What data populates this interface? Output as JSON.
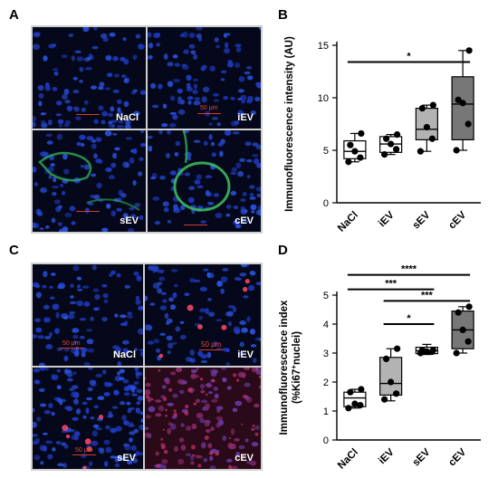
{
  "panels": {
    "a": "A",
    "b": "B",
    "c": "C",
    "d": "D"
  },
  "micrographs_a": [
    {
      "label": "NaCl",
      "scale": "",
      "tone": "blue"
    },
    {
      "label": "iEV",
      "scale": "50 μm",
      "tone": "blue"
    },
    {
      "label": "sEV",
      "scale": "",
      "tone": "vessel"
    },
    {
      "label": "cEV",
      "scale": "",
      "tone": "vessel-large"
    }
  ],
  "micrographs_c": [
    {
      "label": "NaCl",
      "scale": "50 μm",
      "tone": "blue"
    },
    {
      "label": "iEV",
      "scale": "50 μm",
      "tone": "blue-red"
    },
    {
      "label": "sEV",
      "scale": "50 μm",
      "tone": "blue-dense"
    },
    {
      "label": "cEV",
      "scale": "",
      "tone": "red"
    }
  ],
  "colors": {
    "box_fills": [
      "#ffffff",
      "#ffffff",
      "#b3b3b3",
      "#777777"
    ],
    "scale_bar": "#d23a2a"
  },
  "chart_data": [
    {
      "type": "box",
      "ylabel": "Immunofluorescence intensity  (AU)",
      "categories": [
        "NaCl",
        "iEV",
        "sEV",
        "cEV"
      ],
      "ylim": [
        0,
        15
      ],
      "yticks": [
        0,
        5,
        10,
        15
      ],
      "boxes": [
        {
          "min": 3.9,
          "q1": 4.2,
          "median": 4.9,
          "q3": 5.9,
          "max": 6.6,
          "points": [
            3.9,
            4.3,
            4.9,
            5.5,
            6.6
          ]
        },
        {
          "min": 4.6,
          "q1": 4.8,
          "median": 5.6,
          "q3": 6.3,
          "max": 6.5,
          "points": [
            4.6,
            5.1,
            5.6,
            6.1,
            6.5
          ]
        },
        {
          "min": 4.9,
          "q1": 6.0,
          "median": 7.0,
          "q3": 9.0,
          "max": 9.3,
          "points": [
            4.9,
            6.1,
            7.2,
            9.0,
            9.3
          ]
        },
        {
          "min": 5.0,
          "q1": 6.0,
          "median": 9.4,
          "q3": 12.0,
          "max": 14.5,
          "points": [
            5.0,
            7.5,
            9.5,
            9.8,
            14.5
          ]
        }
      ],
      "significance": [
        {
          "from": 0,
          "to": 3,
          "y": 13.4,
          "label": "*"
        }
      ]
    },
    {
      "type": "box",
      "ylabel": "Immunofluorescence index",
      "ylabel_line2": "(%Ki67",
      "ylabel_sup": "+",
      "ylabel_line2_end": "nuclei)",
      "categories": [
        "NaCl",
        "iEV",
        "sEV",
        "cEV"
      ],
      "ylim": [
        0,
        5
      ],
      "yticks": [
        0,
        1,
        2,
        3,
        4,
        5
      ],
      "boxes": [
        {
          "min": 1.1,
          "q1": 1.15,
          "median": 1.45,
          "q3": 1.65,
          "max": 1.75,
          "points": [
            1.1,
            1.2,
            1.25,
            1.65,
            1.75
          ]
        },
        {
          "min": 1.35,
          "q1": 1.55,
          "median": 1.95,
          "q3": 2.85,
          "max": 3.15,
          "points": [
            1.4,
            1.6,
            2.0,
            2.8,
            3.15
          ]
        },
        {
          "min": 2.95,
          "q1": 2.98,
          "median": 3.08,
          "q3": 3.2,
          "max": 3.3,
          "points": [
            3.0,
            3.05,
            3.05,
            3.1,
            3.1
          ]
        },
        {
          "min": 3.0,
          "q1": 3.15,
          "median": 3.8,
          "q3": 4.45,
          "max": 4.6,
          "points": [
            3.0,
            3.4,
            3.8,
            4.4,
            4.6
          ]
        }
      ],
      "significance": [
        {
          "from": 0,
          "to": 3,
          "y": 5.7,
          "label": "****"
        },
        {
          "from": 0,
          "to": 2,
          "y": 5.2,
          "label": "***"
        },
        {
          "from": 1,
          "to": 3,
          "y": 4.8,
          "label": "***"
        },
        {
          "from": 1,
          "to": 2,
          "y": 4.0,
          "label": "*"
        }
      ]
    }
  ]
}
